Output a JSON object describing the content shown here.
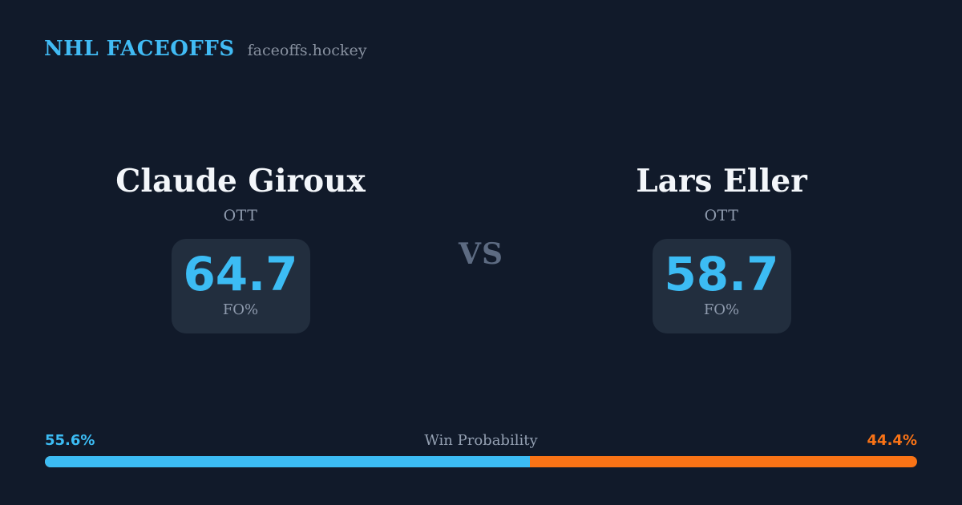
{
  "brand": {
    "title": "NHL FACEOFFS",
    "domain": "faceoffs.hockey"
  },
  "matchup": {
    "vs_label": "VS",
    "players": [
      {
        "name": "Claude Giroux",
        "team": "OTT",
        "stat_value": "64.7",
        "stat_label": "FO%"
      },
      {
        "name": "Lars Eller",
        "team": "OTT",
        "stat_value": "58.7",
        "stat_label": "FO%"
      }
    ]
  },
  "win_probability": {
    "label": "Win Probability",
    "left_pct_label": "55.6%",
    "right_pct_label": "44.4%",
    "left_value": 55.6,
    "right_value": 44.4
  },
  "colors": {
    "background": "#111a2a",
    "card": "#222e3e",
    "accent_blue": "#3cbcf4",
    "accent_orange": "#f97316",
    "text_primary": "#f3f6fa",
    "text_muted": "#8e9aad",
    "vs_text": "#5d6b82"
  },
  "chart_data": {
    "type": "bar",
    "title": "Win Probability",
    "orientation": "horizontal-stacked",
    "categories": [
      "Claude Giroux (OTT)",
      "Lars Eller (OTT)"
    ],
    "series": [
      {
        "name": "Win Probability %",
        "values": [
          55.6,
          44.4
        ]
      },
      {
        "name": "FO%",
        "values": [
          64.7,
          58.7
        ]
      }
    ],
    "xlim": [
      0,
      100
    ],
    "legend": "none",
    "colors": [
      "#3cbcf4",
      "#f97316"
    ]
  }
}
